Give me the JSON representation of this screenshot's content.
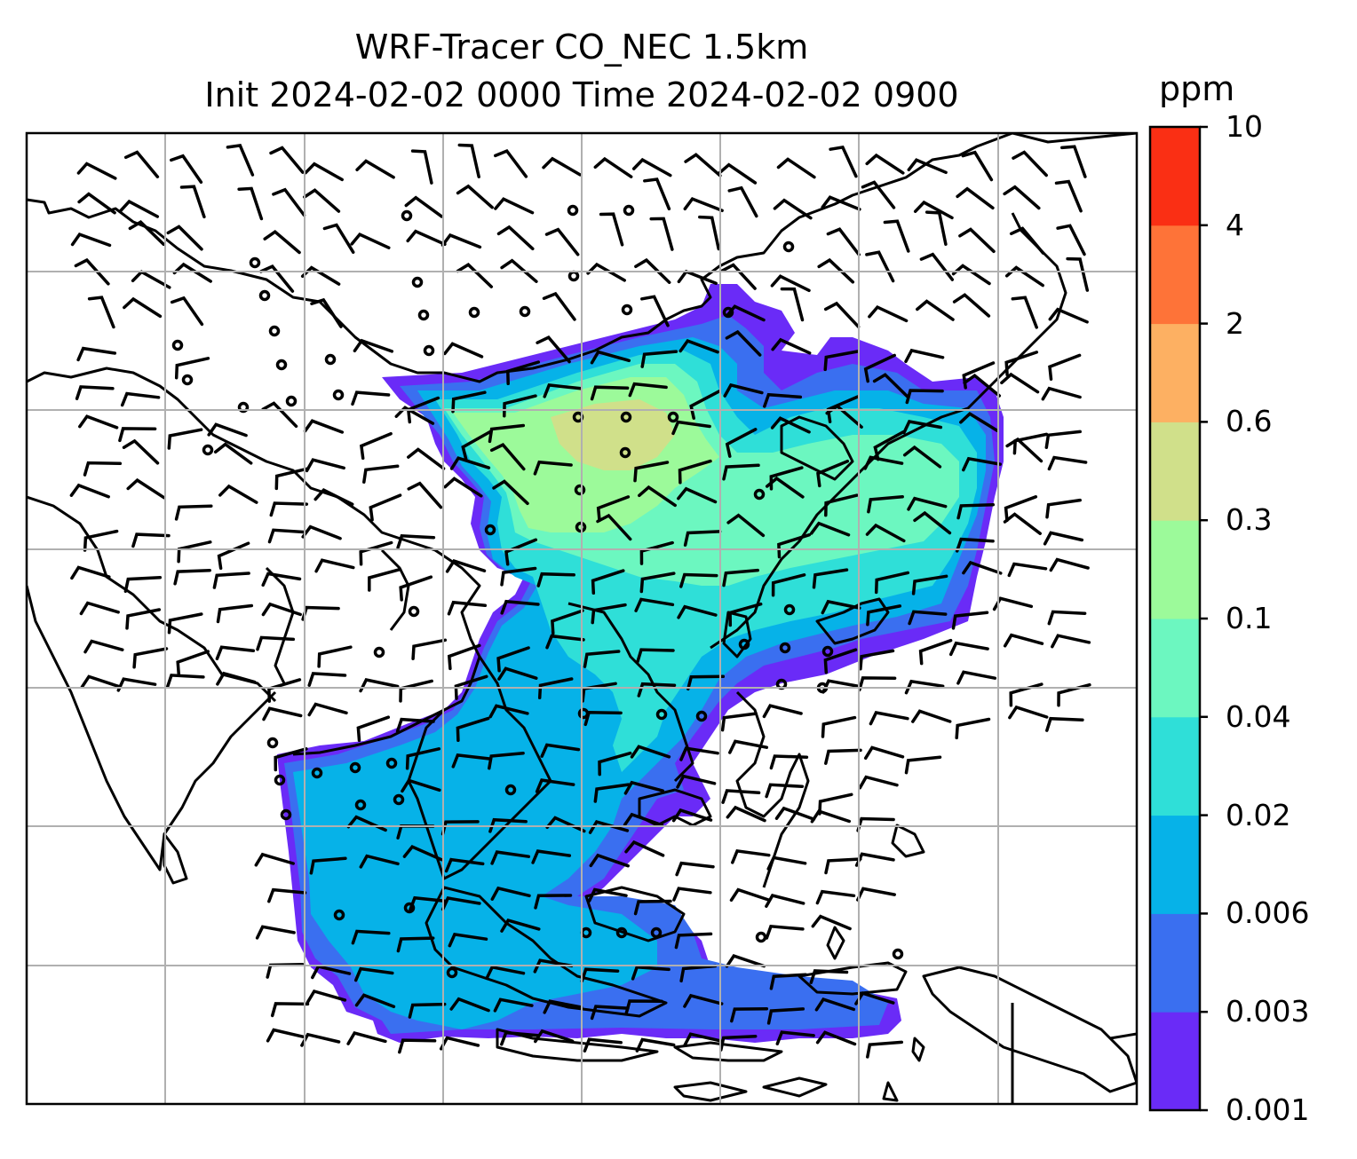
{
  "title": {
    "line1": "WRF-Tracer CO_NEC 1.5km",
    "line2": "Init 2024-02-02 0000 Time 2024-02-02 0900"
  },
  "colorbar": {
    "unit": "ppm",
    "levels": [
      "0.001",
      "0.003",
      "0.006",
      "0.02",
      "0.04",
      "0.1",
      "0.3",
      "0.6",
      "2",
      "4",
      "10"
    ],
    "colors": [
      "#6a2bf7",
      "#3a6ff0",
      "#06b2e8",
      "#2fdfd8",
      "#6cf7c0",
      "#9cfa9a",
      "#d0e08a",
      "#fdb062",
      "#fe7338",
      "#fa2f14"
    ]
  },
  "map": {
    "projection": "lat-lon",
    "gridlines": true,
    "coastlines": true,
    "wind_barbs": true
  }
}
